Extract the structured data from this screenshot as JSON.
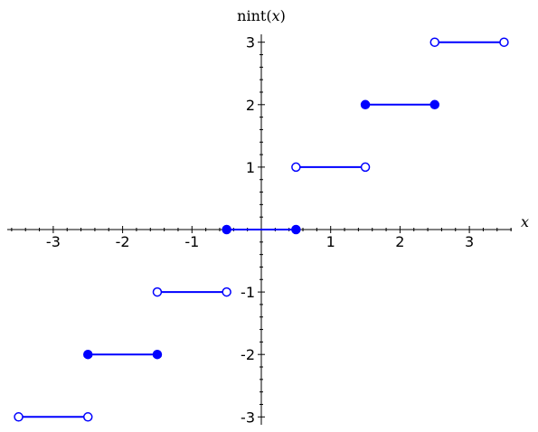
{
  "chart_data": {
    "type": "line",
    "title": "",
    "xlabel": "x",
    "ylabel_prefix": "nint(",
    "ylabel_var": "x",
    "ylabel_suffix": ")",
    "xlim": [
      -3.65,
      3.65
    ],
    "ylim": [
      -3.1,
      3.1
    ],
    "xticks": [
      -3,
      -2,
      -1,
      1,
      2,
      3
    ],
    "xtick_labels": [
      "-3",
      "-2",
      "-1",
      "1",
      "2",
      "3"
    ],
    "yticks": [
      3,
      2,
      1,
      -1,
      -2,
      -3
    ],
    "ytick_labels": [
      "3",
      "2",
      "1",
      "-1",
      "-2",
      "-3"
    ],
    "grid": false,
    "series_color": "#0000ff",
    "segments": [
      {
        "x0": -3.5,
        "x1": -2.5,
        "y": -3,
        "left_closed": false,
        "right_closed": false
      },
      {
        "x0": -2.5,
        "x1": -1.5,
        "y": -2,
        "left_closed": true,
        "right_closed": true
      },
      {
        "x0": -1.5,
        "x1": -0.5,
        "y": -1,
        "left_closed": false,
        "right_closed": false
      },
      {
        "x0": -0.5,
        "x1": 0.5,
        "y": 0,
        "left_closed": true,
        "right_closed": true
      },
      {
        "x0": 0.5,
        "x1": 1.5,
        "y": 1,
        "left_closed": false,
        "right_closed": false
      },
      {
        "x0": 1.5,
        "x1": 2.5,
        "y": 2,
        "left_closed": true,
        "right_closed": true
      },
      {
        "x0": 2.5,
        "x1": 3.5,
        "y": 3,
        "left_closed": false,
        "right_closed": false
      }
    ]
  }
}
